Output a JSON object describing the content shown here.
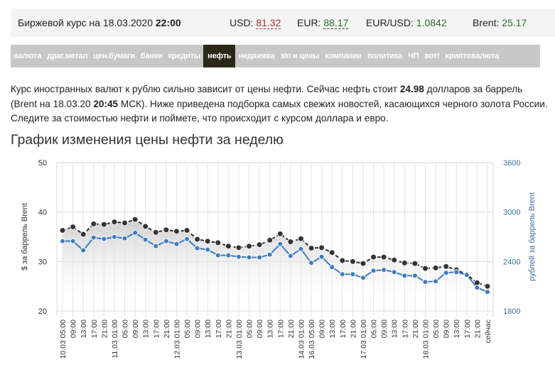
{
  "header": {
    "date_prefix": "Биржевой курс на 18.03.2020",
    "time": "22:00",
    "usd_label": "USD:",
    "usd_value": "81.32",
    "eur_label": "EUR:",
    "eur_value": "88.17",
    "eurusd_label": "EUR/USD:",
    "eurusd_value": "1.0842",
    "brent_label": "Brent:",
    "brent_value": "25.17"
  },
  "nav": [
    "валюта",
    "драг.метал",
    "цен.бумаги",
    "банки",
    "кредиты",
    "нефть",
    "недвижка",
    "з/п и цены",
    "компании",
    "политика",
    "ЧП",
    "вот!",
    "криптовалюта"
  ],
  "nav_active": 5,
  "intro": {
    "t1": "Курс иностранных валют к рублю сильно зависит от цены нефти. Сейчас нефть стоит ",
    "price": "24.98",
    "t2": " долларов за баррель (Brent на 18.03.20 ",
    "time": "20:45",
    "t3": " МСК). Ниже приведена подборка самых свежих новостей, касающихся черного золота России. Следите за стоимостью нефти и поймете, что происходит с курсом доллара и евро."
  },
  "chart_title": "График изменения цены нефти за неделю",
  "colors": {
    "usd_series": "#333333",
    "rub_series": "#3d7bbf",
    "right_axis": "#3d6fa0"
  },
  "chart_data": {
    "type": "line",
    "ylabel": "$ за баррель Brent",
    "ylabel_right": "рублей за баррель Brent",
    "ylim": [
      20,
      50
    ],
    "yticks": [
      20,
      30,
      40,
      50
    ],
    "ylim_right": [
      1800,
      3600
    ],
    "yticks_right": [
      1800,
      2400,
      3000,
      3600
    ],
    "grid": true,
    "x": [
      "10.03 05:00",
      "09:00",
      "13:00",
      "17:00",
      "21:00",
      "11.03 01:00",
      "05:00",
      "09:00",
      "13:00",
      "17:00",
      "21:00",
      "12.03 01:00",
      "05:00",
      "09:00",
      "13:00",
      "17:00",
      "21:00",
      "13.03 01:00",
      "05:00",
      "09:00",
      "13:00",
      "17:00",
      "21:00",
      "14.03 01:00",
      "16.03 05:00",
      "09:00",
      "13:00",
      "17:00",
      "21:00",
      "17.03 01:00",
      "05:00",
      "09:00",
      "13:00",
      "17:00",
      "21:00",
      "18.03 01:00",
      "05:00",
      "09:00",
      "13:00",
      "17:00",
      "21:00",
      "сейчас"
    ],
    "series": [
      {
        "name": "$ за баррель Brent",
        "axis": "left",
        "values": [
          36.3,
          37.0,
          35.5,
          37.6,
          37.5,
          38.0,
          37.8,
          38.5,
          37.1,
          35.9,
          36.4,
          36.1,
          36.3,
          34.5,
          34.1,
          33.8,
          33.1,
          32.8,
          33.1,
          33.4,
          34.3,
          35.6,
          34.0,
          34.6,
          32.7,
          32.8,
          31.8,
          30.2,
          30.0,
          29.6,
          30.9,
          30.9,
          30.3,
          29.7,
          29.6,
          28.6,
          28.7,
          29.0,
          28.3,
          27.4,
          25.7,
          24.98
        ]
      },
      {
        "name": "рублей за баррель Brent",
        "axis": "right",
        "values": [
          2647,
          2647,
          2535,
          2690,
          2673,
          2698,
          2681,
          2750,
          2664,
          2587,
          2647,
          2612,
          2673,
          2561,
          2544,
          2475,
          2475,
          2458,
          2450,
          2450,
          2484,
          2612,
          2467,
          2553,
          2383,
          2458,
          2332,
          2246,
          2246,
          2203,
          2289,
          2298,
          2272,
          2229,
          2229,
          2152,
          2160,
          2263,
          2272,
          2237,
          2083,
          2031
        ]
      }
    ]
  }
}
